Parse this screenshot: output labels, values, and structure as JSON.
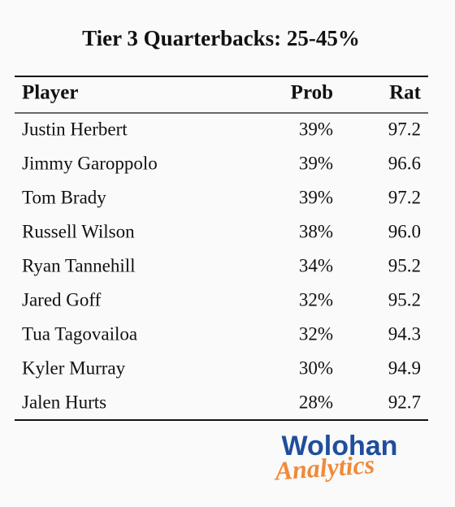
{
  "title": "Tier 3 Quarterbacks: 25-45%",
  "table": {
    "header": [
      "Player",
      "Prob",
      "Rat"
    ],
    "rows": [
      [
        "Justin Herbert",
        "39%",
        "97.2"
      ],
      [
        "Jimmy Garoppolo",
        "39%",
        "96.6"
      ],
      [
        "Tom Brady",
        "39%",
        "97.2"
      ],
      [
        "Russell Wilson",
        "38%",
        "96.0"
      ],
      [
        "Ryan Tannehill",
        "34%",
        "95.2"
      ],
      [
        "Jared Goff",
        "32%",
        "95.2"
      ],
      [
        "Tua Tagovailoa",
        "32%",
        "94.3"
      ],
      [
        "Kyler Murray",
        "30%",
        "94.9"
      ],
      [
        "Jalen Hurts",
        "28%",
        "92.7"
      ]
    ]
  },
  "logo": {
    "line1": "Wolohan",
    "line2": "Analytics"
  }
}
